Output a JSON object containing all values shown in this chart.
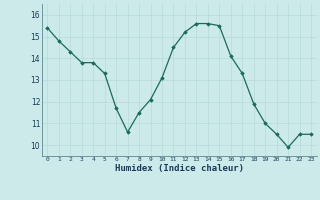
{
  "x": [
    0,
    1,
    2,
    3,
    4,
    5,
    6,
    7,
    8,
    9,
    10,
    11,
    12,
    13,
    14,
    15,
    16,
    17,
    18,
    19,
    20,
    21,
    22,
    23
  ],
  "y": [
    15.4,
    14.8,
    14.3,
    13.8,
    13.8,
    13.3,
    11.7,
    10.6,
    11.5,
    12.1,
    13.1,
    14.5,
    15.2,
    15.6,
    15.6,
    15.5,
    14.1,
    13.3,
    11.9,
    11.0,
    10.5,
    9.9,
    10.5,
    10.5
  ],
  "xlabel": "Humidex (Indice chaleur)",
  "ylim": [
    9.5,
    16.5
  ],
  "xlim": [
    -0.5,
    23.5
  ],
  "yticks": [
    10,
    11,
    12,
    13,
    14,
    15,
    16
  ],
  "xticks": [
    0,
    1,
    2,
    3,
    4,
    5,
    6,
    7,
    8,
    9,
    10,
    11,
    12,
    13,
    14,
    15,
    16,
    17,
    18,
    19,
    20,
    21,
    22,
    23
  ],
  "line_color": "#1a6b5a",
  "marker": "D",
  "marker_size": 1.8,
  "bg_color": "#cdeaea",
  "grid_color": "#b8d8d8",
  "xlabel_color": "#1a3a5a",
  "label_color": "#1a3a5a",
  "spine_color": "#5a8a8a"
}
